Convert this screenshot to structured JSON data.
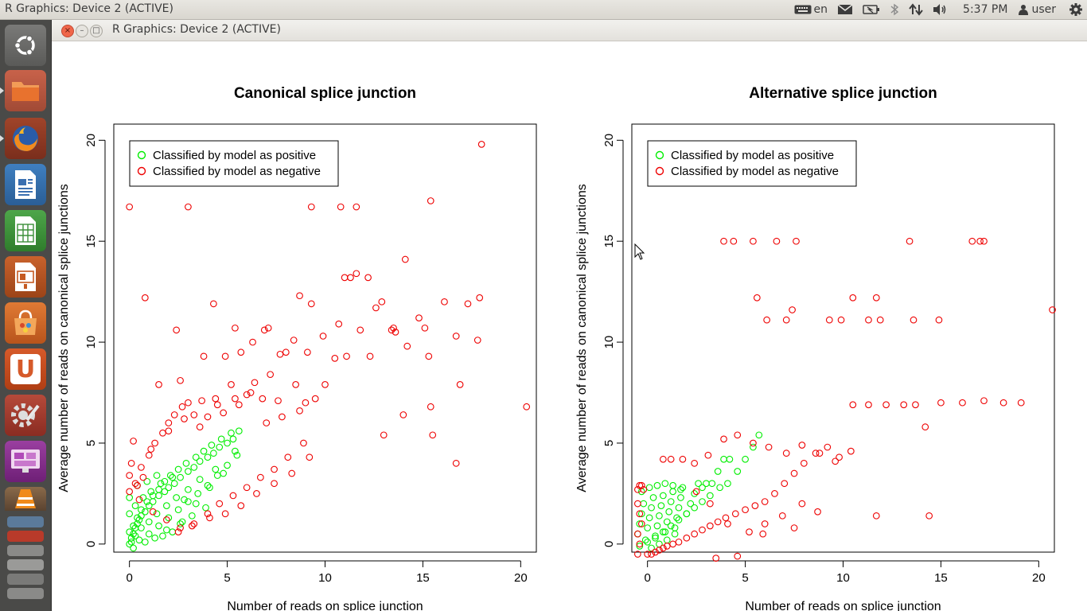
{
  "top_panel": {
    "app_title": "R Graphics: Device 2 (ACTIVE)",
    "keyboard_layout": "en",
    "clock": "5:37 PM",
    "user": "user",
    "icons": [
      "keyboard-icon",
      "mail-icon",
      "battery-icon",
      "bluetooth-icon",
      "network-icon",
      "volume-icon",
      "user-icon",
      "gear-icon"
    ]
  },
  "window": {
    "title": "R Graphics: Device 2 (ACTIVE)",
    "buttons": {
      "close": "×",
      "minimize": "–",
      "maximize": "□"
    }
  },
  "launcher": {
    "items": [
      "dash-icon",
      "files-icon",
      "firefox-icon",
      "writer-icon",
      "calc-icon",
      "impress-icon",
      "software-center-icon",
      "ubuntu-one-icon",
      "system-settings-icon",
      "workspace-switcher-icon",
      "vlc-icon"
    ],
    "letters": {
      "ubuntu_one": "U"
    }
  },
  "colors": {
    "positive": "#00ee00",
    "negative": "#ee0000",
    "axis": "#000000"
  },
  "chart_data": [
    {
      "type": "scatter",
      "title": "Canonical splice junction",
      "xlabel": "Number of reads on splice junction",
      "ylabel": "Average number of reads on canonical splice junctions",
      "xlim": [
        -0.8,
        20.8
      ],
      "ylim": [
        -0.4,
        20.8
      ],
      "xticks": [
        0,
        5,
        10,
        15,
        20
      ],
      "yticks": [
        0,
        5,
        10,
        15,
        20
      ],
      "legend": {
        "position": "top-left",
        "entries": [
          {
            "label": "Classified by model as positive",
            "color": "#00ee00"
          },
          {
            "label": "Classified by model as negative",
            "color": "#ee0000"
          }
        ]
      },
      "series": [
        {
          "name": "Classified by model as positive",
          "color": "#00ee00",
          "x": [
            0,
            0.1,
            0.2,
            0.3,
            0.4,
            0.5,
            0.6,
            0.8,
            1.0,
            1.2,
            1.5,
            1.8,
            2.0,
            2.3,
            2.6,
            3.0,
            3.3,
            3.6,
            4.0,
            4.3,
            4.6,
            5.0,
            5.3,
            5.6,
            0,
            0.2,
            0.4,
            0.6,
            0.9,
            1.2,
            1.5,
            1.8,
            2.1,
            2.5,
            2.9,
            3.4,
            3.8,
            4.2,
            4.7,
            5.2,
            0.1,
            0.3,
            0.6,
            1.0,
            1.4,
            1.9,
            2.4,
            3.0,
            3.6,
            4.4,
            0,
            0.5,
            1.0,
            1.5,
            2.0,
            2.5,
            3.0,
            3.5,
            4.0,
            4.5,
            5.0,
            5.5,
            0.3,
            0.7,
            1.1,
            1.6,
            2.2,
            2.8,
            3.4,
            4.1,
            4.8,
            5.4,
            0.2,
            0.8,
            1.3,
            1.9,
            2.6,
            3.2,
            3.9,
            0,
            0.4,
            0.9,
            1.4,
            1.7,
            2.2,
            2.7
          ],
          "y": [
            0,
            0.3,
            0.5,
            0.8,
            1.0,
            1.2,
            1.4,
            1.6,
            1.9,
            2.1,
            2.4,
            2.6,
            2.8,
            3.0,
            3.3,
            3.6,
            3.8,
            4.1,
            4.3,
            4.5,
            4.8,
            5.0,
            5.2,
            5.6,
            0.6,
            0.9,
            1.3,
            1.7,
            2.1,
            2.4,
            2.7,
            3.1,
            3.4,
            3.7,
            4.0,
            4.3,
            4.6,
            4.9,
            5.2,
            5.5,
            0.1,
            0.4,
            0.8,
            1.1,
            1.5,
            1.9,
            2.3,
            2.7,
            3.2,
            3.7,
            1.5,
            0.2,
            0.5,
            0.9,
            1.3,
            1.7,
            2.1,
            2.5,
            2.9,
            3.4,
            3.9,
            4.4,
            1.9,
            2.3,
            2.6,
            3.0,
            3.3,
            2.2,
            2.0,
            2.8,
            3.5,
            4.6,
            -0.2,
            0.1,
            0.3,
            0.7,
            1.0,
            1.4,
            1.8,
            2.3,
            2.9,
            3.1,
            3.4,
            0.4,
            0.6,
            1.1
          ]
        },
        {
          "name": "Classified by model as negative",
          "color": "#ee0000",
          "x": [
            0,
            0,
            0.1,
            0.2,
            0.4,
            0.6,
            1.0,
            1.3,
            1.7,
            2.0,
            2.3,
            2.7,
            3.0,
            3.3,
            3.7,
            4.0,
            4.4,
            4.8,
            5.2,
            5.6,
            6.0,
            6.4,
            6.8,
            7.2,
            7.6,
            8.0,
            8.5,
            9.0,
            9.5,
            10.0,
            10.5,
            11.0,
            11.6,
            12.2,
            12.9,
            13.5,
            14.1,
            14.8,
            15.4,
            16.1,
            16.7,
            17.3,
            17.9,
            18.0,
            20.3,
            0,
            3.0,
            9.3,
            10.8,
            11.6,
            15.4,
            0.8,
            2.4,
            4.3,
            5.4,
            6.9,
            8.7,
            9.3,
            10.7,
            11.3,
            11.8,
            12.6,
            13.6,
            14.2,
            15.1,
            15.3,
            16.9,
            17.8,
            1.5,
            2.6,
            3.8,
            4.9,
            5.7,
            6.3,
            7.1,
            7.7,
            8.4,
            9.1,
            9.9,
            11.1,
            12.3,
            13.0,
            13.4,
            14.0,
            15.5,
            16.7,
            0.5,
            1.2,
            1.9,
            2.6,
            3.3,
            4.1,
            4.9,
            5.7,
            6.5,
            7.4,
            8.3,
            9.2,
            2.5,
            3.2,
            4.0,
            4.6,
            5.3,
            6.0,
            6.7,
            7.4,
            8.1,
            8.9,
            0.3,
            0.7,
            1.1,
            2.0,
            2.8,
            3.6,
            4.5,
            5.4,
            6.2,
            7.0,
            7.8,
            8.7
          ],
          "y": [
            2.6,
            3.4,
            4.0,
            5.1,
            2.9,
            3.8,
            4.4,
            5.0,
            5.5,
            6.0,
            6.4,
            6.8,
            7.0,
            6.4,
            7.1,
            6.3,
            7.2,
            6.5,
            7.9,
            6.9,
            7.4,
            8.0,
            7.2,
            8.4,
            7.1,
            9.5,
            7.9,
            7.0,
            7.2,
            7.9,
            9.2,
            13.2,
            13.4,
            13.2,
            12.0,
            10.7,
            14.1,
            11.2,
            17.0,
            12.0,
            10.3,
            11.9,
            12.2,
            19.8,
            6.8,
            16.7,
            16.7,
            16.7,
            16.7,
            16.7,
            6.8,
            12.2,
            10.6,
            11.9,
            10.7,
            10.6,
            12.3,
            11.9,
            10.9,
            13.2,
            10.6,
            11.7,
            10.5,
            9.8,
            10.7,
            9.3,
            7.9,
            10.1,
            7.9,
            8.1,
            9.3,
            9.3,
            9.5,
            10.0,
            10.7,
            9.4,
            10.1,
            9.5,
            10.3,
            9.3,
            9.3,
            5.4,
            10.6,
            6.4,
            5.4,
            4.0,
            2.2,
            1.6,
            1.2,
            0.8,
            1.0,
            1.3,
            1.5,
            1.9,
            2.5,
            3.0,
            3.5,
            4.3,
            0.6,
            0.9,
            1.5,
            2.0,
            2.4,
            2.8,
            3.3,
            3.7,
            4.3,
            5.0,
            3.0,
            3.3,
            4.7,
            5.6,
            6.2,
            5.8,
            6.9,
            7.2,
            7.5,
            6.0,
            6.3,
            6.6
          ]
        }
      ]
    },
    {
      "type": "scatter",
      "title": "Alternative splice junction",
      "xlabel": "Number of reads on splice junction",
      "ylabel": "Average number of reads on canonical splice junctions",
      "xlim": [
        -0.8,
        20.8
      ],
      "ylim": [
        -0.4,
        20.8
      ],
      "xticks": [
        0,
        5,
        10,
        15,
        20
      ],
      "yticks": [
        0,
        5,
        10,
        15,
        20
      ],
      "legend": {
        "position": "top-left",
        "entries": [
          {
            "label": "Classified by model as positive",
            "color": "#00ee00"
          },
          {
            "label": "Classified by model as negative",
            "color": "#ee0000"
          }
        ]
      },
      "series": [
        {
          "name": "Classified by model as positive",
          "color": "#00ee00",
          "x": [
            -0.5,
            -0.4,
            -0.3,
            -0.2,
            -0.1,
            0,
            0.1,
            0.2,
            0.3,
            0.4,
            0.5,
            0.6,
            0.7,
            0.8,
            0.9,
            1.0,
            1.1,
            1.2,
            1.3,
            1.4,
            1.5,
            1.6,
            1.7,
            1.8,
            2.0,
            2.2,
            2.4,
            2.6,
            2.8,
            3.0,
            3.3,
            3.6,
            3.9,
            4.2,
            4.6,
            5.0,
            5.4,
            5.7,
            -0.4,
            0,
            0.4,
            0.8,
            1.2,
            1.6,
            2.0,
            2.4,
            2.8,
            3.2,
            3.7,
            4.1,
            -0.3,
            0.1,
            0.5,
            0.9,
            1.3,
            1.7,
            0.2,
            0.6,
            1.0,
            1.4
          ],
          "y": [
            0.5,
            1.0,
            1.5,
            2.0,
            0.2,
            0.8,
            1.3,
            1.8,
            2.3,
            0.4,
            0.9,
            1.4,
            1.9,
            2.4,
            0.6,
            1.1,
            1.6,
            2.1,
            2.6,
            0.8,
            1.3,
            1.8,
            2.3,
            2.8,
            1.5,
            2.0,
            2.5,
            3.0,
            2.8,
            3.0,
            3.0,
            3.6,
            4.2,
            4.2,
            3.6,
            4.2,
            4.8,
            5.4,
            -0.1,
            0.1,
            0.3,
            0.6,
            0.9,
            1.2,
            1.5,
            1.8,
            2.1,
            2.4,
            2.8,
            3.0,
            2.6,
            2.8,
            2.9,
            3.0,
            2.9,
            2.7,
            -0.2,
            0.0,
            0.2,
            0.5
          ]
        },
        {
          "name": "Classified by model as negative",
          "color": "#ee0000",
          "x": [
            -0.5,
            -0.4,
            -0.3,
            -0.2,
            -0.5,
            -0.4,
            -0.3,
            -0.5,
            -0.4,
            -0.5,
            0,
            0.2,
            0.4,
            0.6,
            0.8,
            1.0,
            1.3,
            1.6,
            2.0,
            2.4,
            2.8,
            3.2,
            3.6,
            4.0,
            4.5,
            5.0,
            5.5,
            6.0,
            6.5,
            7.0,
            7.5,
            8.0,
            8.6,
            9.2,
            9.8,
            10.4,
            11.7,
            14.4,
            0.8,
            1.2,
            1.8,
            2.4,
            3.1,
            3.9,
            4.6,
            5.4,
            6.2,
            7.1,
            7.9,
            8.8,
            9.6,
            10.5,
            11.3,
            12.2,
            13.1,
            13.7,
            15.0,
            16.1,
            17.2,
            18.2,
            19.1,
            3.9,
            4.4,
            5.4,
            6.6,
            7.6,
            13.4,
            16.6,
            17.0,
            17.2,
            5.6,
            6.1,
            7.1,
            7.4,
            10.5,
            11.7,
            20.7,
            9.3,
            9.9,
            11.3,
            11.9,
            13.6,
            14.9,
            14.2,
            2.5,
            3.2,
            4.1,
            5.2,
            6.0,
            6.9,
            7.9,
            8.7,
            5.9,
            7.5,
            3.5,
            4.6
          ],
          "y": [
            2.7,
            2.9,
            2.9,
            2.7,
            2.0,
            1.5,
            1.0,
            0.5,
            0.0,
            -0.5,
            -0.5,
            -0.5,
            -0.4,
            -0.3,
            -0.2,
            -0.1,
            0.0,
            0.1,
            0.3,
            0.5,
            0.7,
            0.9,
            1.1,
            1.3,
            1.5,
            1.7,
            1.9,
            2.1,
            2.5,
            3.0,
            3.5,
            4.0,
            4.5,
            4.8,
            4.3,
            4.6,
            1.4,
            1.4,
            4.2,
            4.2,
            4.2,
            4.0,
            4.4,
            5.2,
            5.4,
            5.0,
            4.8,
            4.5,
            4.9,
            4.5,
            4.1,
            6.9,
            6.9,
            6.9,
            6.9,
            6.9,
            7.0,
            7.0,
            7.1,
            7.0,
            7.0,
            15.0,
            15.0,
            15.0,
            15.0,
            15.0,
            15.0,
            15.0,
            15.0,
            15.0,
            12.2,
            11.1,
            11.1,
            11.6,
            12.2,
            12.2,
            11.6,
            11.1,
            11.1,
            11.1,
            11.1,
            11.1,
            11.1,
            5.8,
            2.6,
            2.0,
            1.0,
            0.6,
            1.0,
            1.4,
            2.0,
            1.6,
            0.5,
            0.8,
            -0.7,
            -0.6
          ]
        }
      ]
    }
  ]
}
